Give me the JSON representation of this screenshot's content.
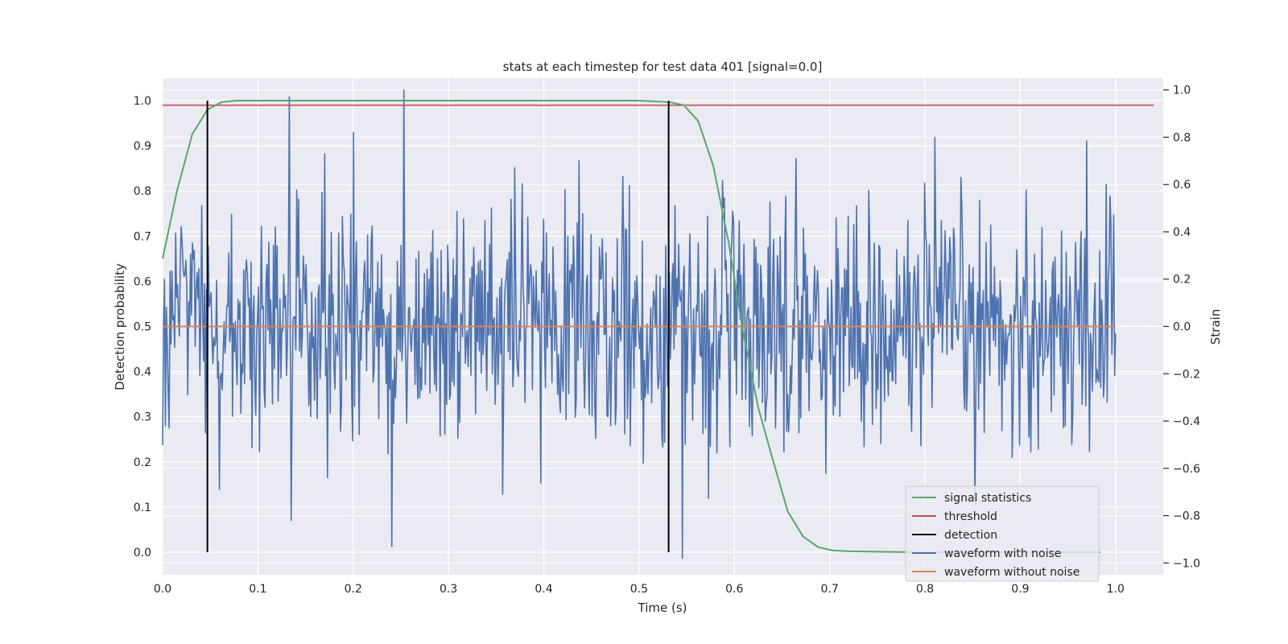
{
  "chart_data": {
    "type": "line",
    "title": "stats at each timestep for test data 401 [signal=0.0]",
    "xlabel": "Time (s)",
    "ylabel_left": "Detection probability",
    "ylabel_right": "Strain",
    "xlim": [
      0.0,
      1.05
    ],
    "ylim_left": [
      -0.05,
      1.05
    ],
    "ylim_right": [
      -1.05,
      1.05
    ],
    "x_ticks": [
      "0.0",
      "0.1",
      "0.2",
      "0.3",
      "0.4",
      "0.5",
      "0.6",
      "0.7",
      "0.8",
      "0.9",
      "1.0"
    ],
    "y_ticks_left": [
      "0.0",
      "0.1",
      "0.2",
      "0.3",
      "0.4",
      "0.5",
      "0.6",
      "0.7",
      "0.8",
      "0.9",
      "1.0"
    ],
    "y_ticks_right": [
      "−1.0",
      "−0.8",
      "−0.6",
      "−0.4",
      "−0.2",
      "0.0",
      "0.2",
      "0.4",
      "0.6",
      "0.8",
      "1.0"
    ],
    "grid": true,
    "legend_position": "lower-right",
    "series": [
      {
        "name": "signal statistics",
        "axis": "left",
        "color": "#55a868",
        "x": [
          0.0,
          0.015,
          0.031,
          0.047,
          0.062,
          0.078,
          0.1,
          0.2,
          0.3,
          0.4,
          0.5,
          0.531,
          0.547,
          0.562,
          0.578,
          0.594,
          0.609,
          0.625,
          0.641,
          0.656,
          0.672,
          0.688,
          0.703,
          0.719,
          0.75,
          0.8,
          0.85,
          0.9,
          0.95,
          0.984
        ],
        "y": [
          0.65,
          0.8,
          0.925,
          0.98,
          0.997,
          1.0,
          1.0,
          1.0,
          1.0,
          1.0,
          1.0,
          0.997,
          0.99,
          0.955,
          0.855,
          0.685,
          0.49,
          0.32,
          0.2,
          0.09,
          0.035,
          0.011,
          0.004,
          0.002,
          0.001,
          0.0,
          0.0,
          0.0,
          0.0,
          0.0
        ]
      },
      {
        "name": "threshold",
        "axis": "left",
        "color": "#c44e52",
        "x": [
          0.0,
          1.04
        ],
        "y": [
          0.99,
          0.99
        ]
      },
      {
        "name": "detection",
        "axis": "left",
        "color": "#000000",
        "segments": [
          {
            "x": 0.047,
            "y_min": 0.0,
            "y_max": 1.0
          },
          {
            "x": 0.531,
            "y_min": 0.0,
            "y_max": 1.0
          }
        ]
      },
      {
        "name": "waveform with noise",
        "axis": "right",
        "color": "#4c72b0",
        "generated_noise": {
          "x_start": 0.0,
          "x_end": 1.0,
          "n_points": 1024,
          "std": 0.25,
          "clip": [
            -0.95,
            0.98
          ]
        },
        "spikes": [
          {
            "x": 0.002,
            "y": 0.2
          },
          {
            "x": 0.045,
            "y": -0.45
          },
          {
            "x": 0.133,
            "y": 0.97
          },
          {
            "x": 0.135,
            "y": -0.82
          },
          {
            "x": 0.2,
            "y": 0.82
          },
          {
            "x": 0.24,
            "y": -0.93
          },
          {
            "x": 0.253,
            "y": 1.0
          },
          {
            "x": 0.357,
            "y": -0.71
          },
          {
            "x": 0.437,
            "y": 0.7
          },
          {
            "x": 0.545,
            "y": -0.98
          },
          {
            "x": 0.665,
            "y": 0.71
          },
          {
            "x": 0.81,
            "y": 0.8
          },
          {
            "x": 0.99,
            "y": 0.6
          }
        ]
      },
      {
        "name": "waveform without noise",
        "axis": "right",
        "color": "#dd8452",
        "x": [
          0.0,
          1.0
        ],
        "y": [
          0.0,
          0.0
        ]
      }
    ]
  }
}
